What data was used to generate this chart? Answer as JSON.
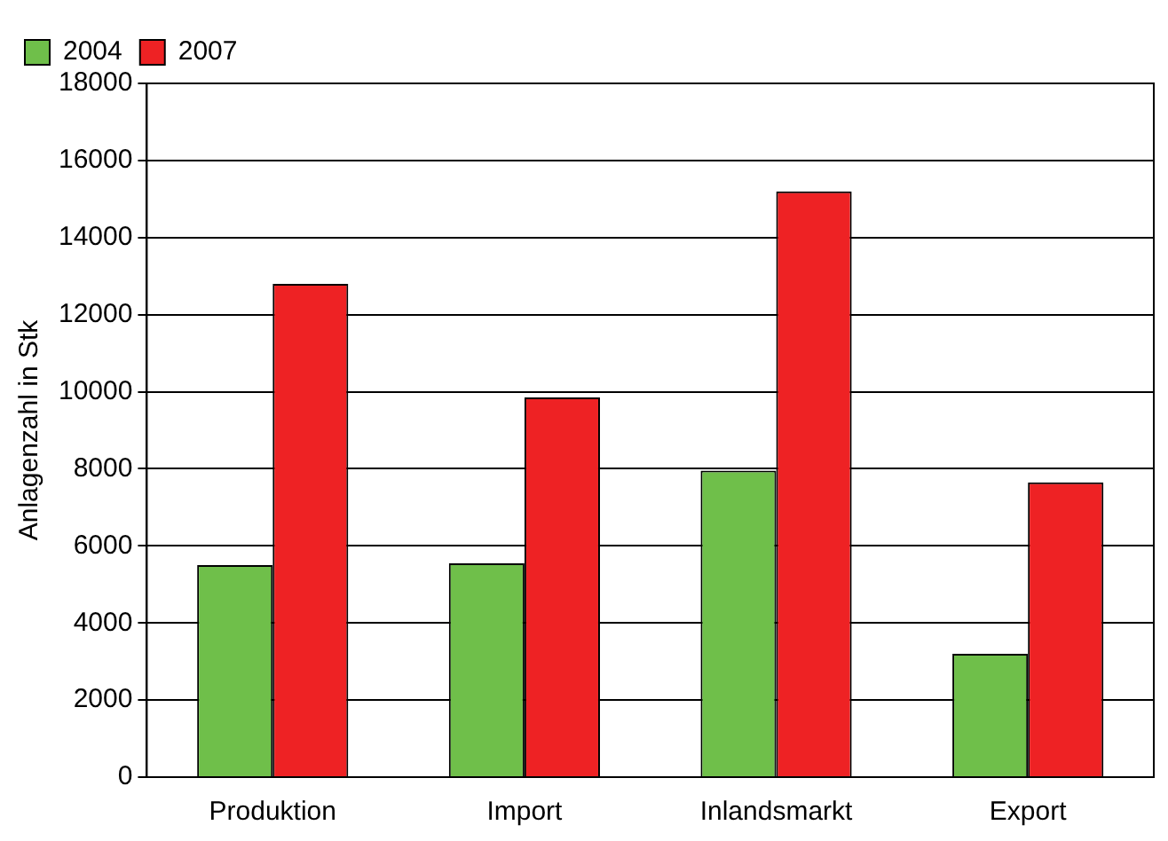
{
  "chart_data": {
    "type": "bar",
    "ylabel": "Anlagenzahl in Stk",
    "categories": [
      "Produktion",
      "Import",
      "Inlandsmarkt",
      "Export"
    ],
    "series": [
      {
        "name": "2004",
        "color": "#6fbf4a",
        "values": [
          5500,
          5550,
          7950,
          3200
        ]
      },
      {
        "name": "2007",
        "color": "#ee2224",
        "values": [
          12800,
          9850,
          15200,
          7650
        ]
      }
    ],
    "ylim": [
      0,
      18000
    ],
    "yticks": [
      0,
      2000,
      4000,
      6000,
      8000,
      10000,
      12000,
      14000,
      16000,
      18000
    ],
    "grid": "y",
    "legend": "top left"
  }
}
